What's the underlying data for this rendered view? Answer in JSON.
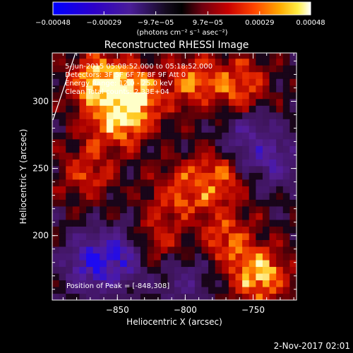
{
  "chart_data": {
    "type": "heatmap",
    "title": "Reconstructed RHESSI Image",
    "xlabel": "Heliocentric X (arcsec)",
    "ylabel": "Heliocentric Y (arcsec)",
    "xlim": [
      -898,
      -718
    ],
    "ylim": [
      152,
      336
    ],
    "x_ticks": [
      -850,
      -800,
      -750
    ],
    "x_tick_labels": [
      "−850",
      "−800",
      "−750"
    ],
    "y_ticks": [
      200,
      250,
      300
    ],
    "y_tick_labels": [
      "200",
      "250",
      "300"
    ],
    "colorbar": {
      "range": [
        -0.00048,
        0.00048
      ],
      "ticks": [
        -0.00048,
        -0.00029,
        -9.7e-05,
        9.7e-05,
        0.00029,
        0.00048
      ],
      "tick_labels": [
        "−0.00048",
        "−0.00029",
        "−9.7e−05",
        "9.7e−05",
        "0.00029",
        "0.00048"
      ],
      "unit_label": "(photons cm⁻² s⁻¹ asec⁻²)",
      "colormap": "blue-purple-black-red-orange-yellow-white"
    },
    "annotations": [
      "5-Jun-2015 05:08:52.000 to 05:18:52.000",
      "Detectors: 3F 5F 6F 7F 8F 9F  Att 0",
      "Energy Range: 12.0 - 25.0 keV",
      "Clean    Total counts: 2.33E+04"
    ],
    "peak_label": "Position of Peak = [-848,308]",
    "peak_position": [
      -848,
      308
    ],
    "timestamp": "2-Nov-2017 02:01",
    "bright_regions": [
      {
        "x": -862,
        "y": 314,
        "intensity": 0.00046
      },
      {
        "x": -838,
        "y": 302,
        "intensity": 0.00044
      },
      {
        "x": -852,
        "y": 285,
        "intensity": 0.0003
      },
      {
        "x": -795,
        "y": 315,
        "intensity": 0.00025
      },
      {
        "x": -760,
        "y": 312,
        "intensity": 0.00026
      },
      {
        "x": -778,
        "y": 242,
        "intensity": 0.00028
      },
      {
        "x": -805,
        "y": 232,
        "intensity": 0.00022
      },
      {
        "x": -872,
        "y": 248,
        "intensity": 0.0002
      },
      {
        "x": -745,
        "y": 170,
        "intensity": 0.00042
      },
      {
        "x": -768,
        "y": 198,
        "intensity": 0.00024
      },
      {
        "x": -822,
        "y": 196,
        "intensity": 0.00018
      }
    ],
    "dim_regions": [
      {
        "x": -868,
        "y": 178,
        "intensity": -0.00032
      },
      {
        "x": -848,
        "y": 185,
        "intensity": -0.00028
      },
      {
        "x": -752,
        "y": 272,
        "intensity": -0.00022
      },
      {
        "x": -732,
        "y": 255,
        "intensity": -0.00018
      },
      {
        "x": -800,
        "y": 168,
        "intensity": -0.00015
      }
    ]
  }
}
